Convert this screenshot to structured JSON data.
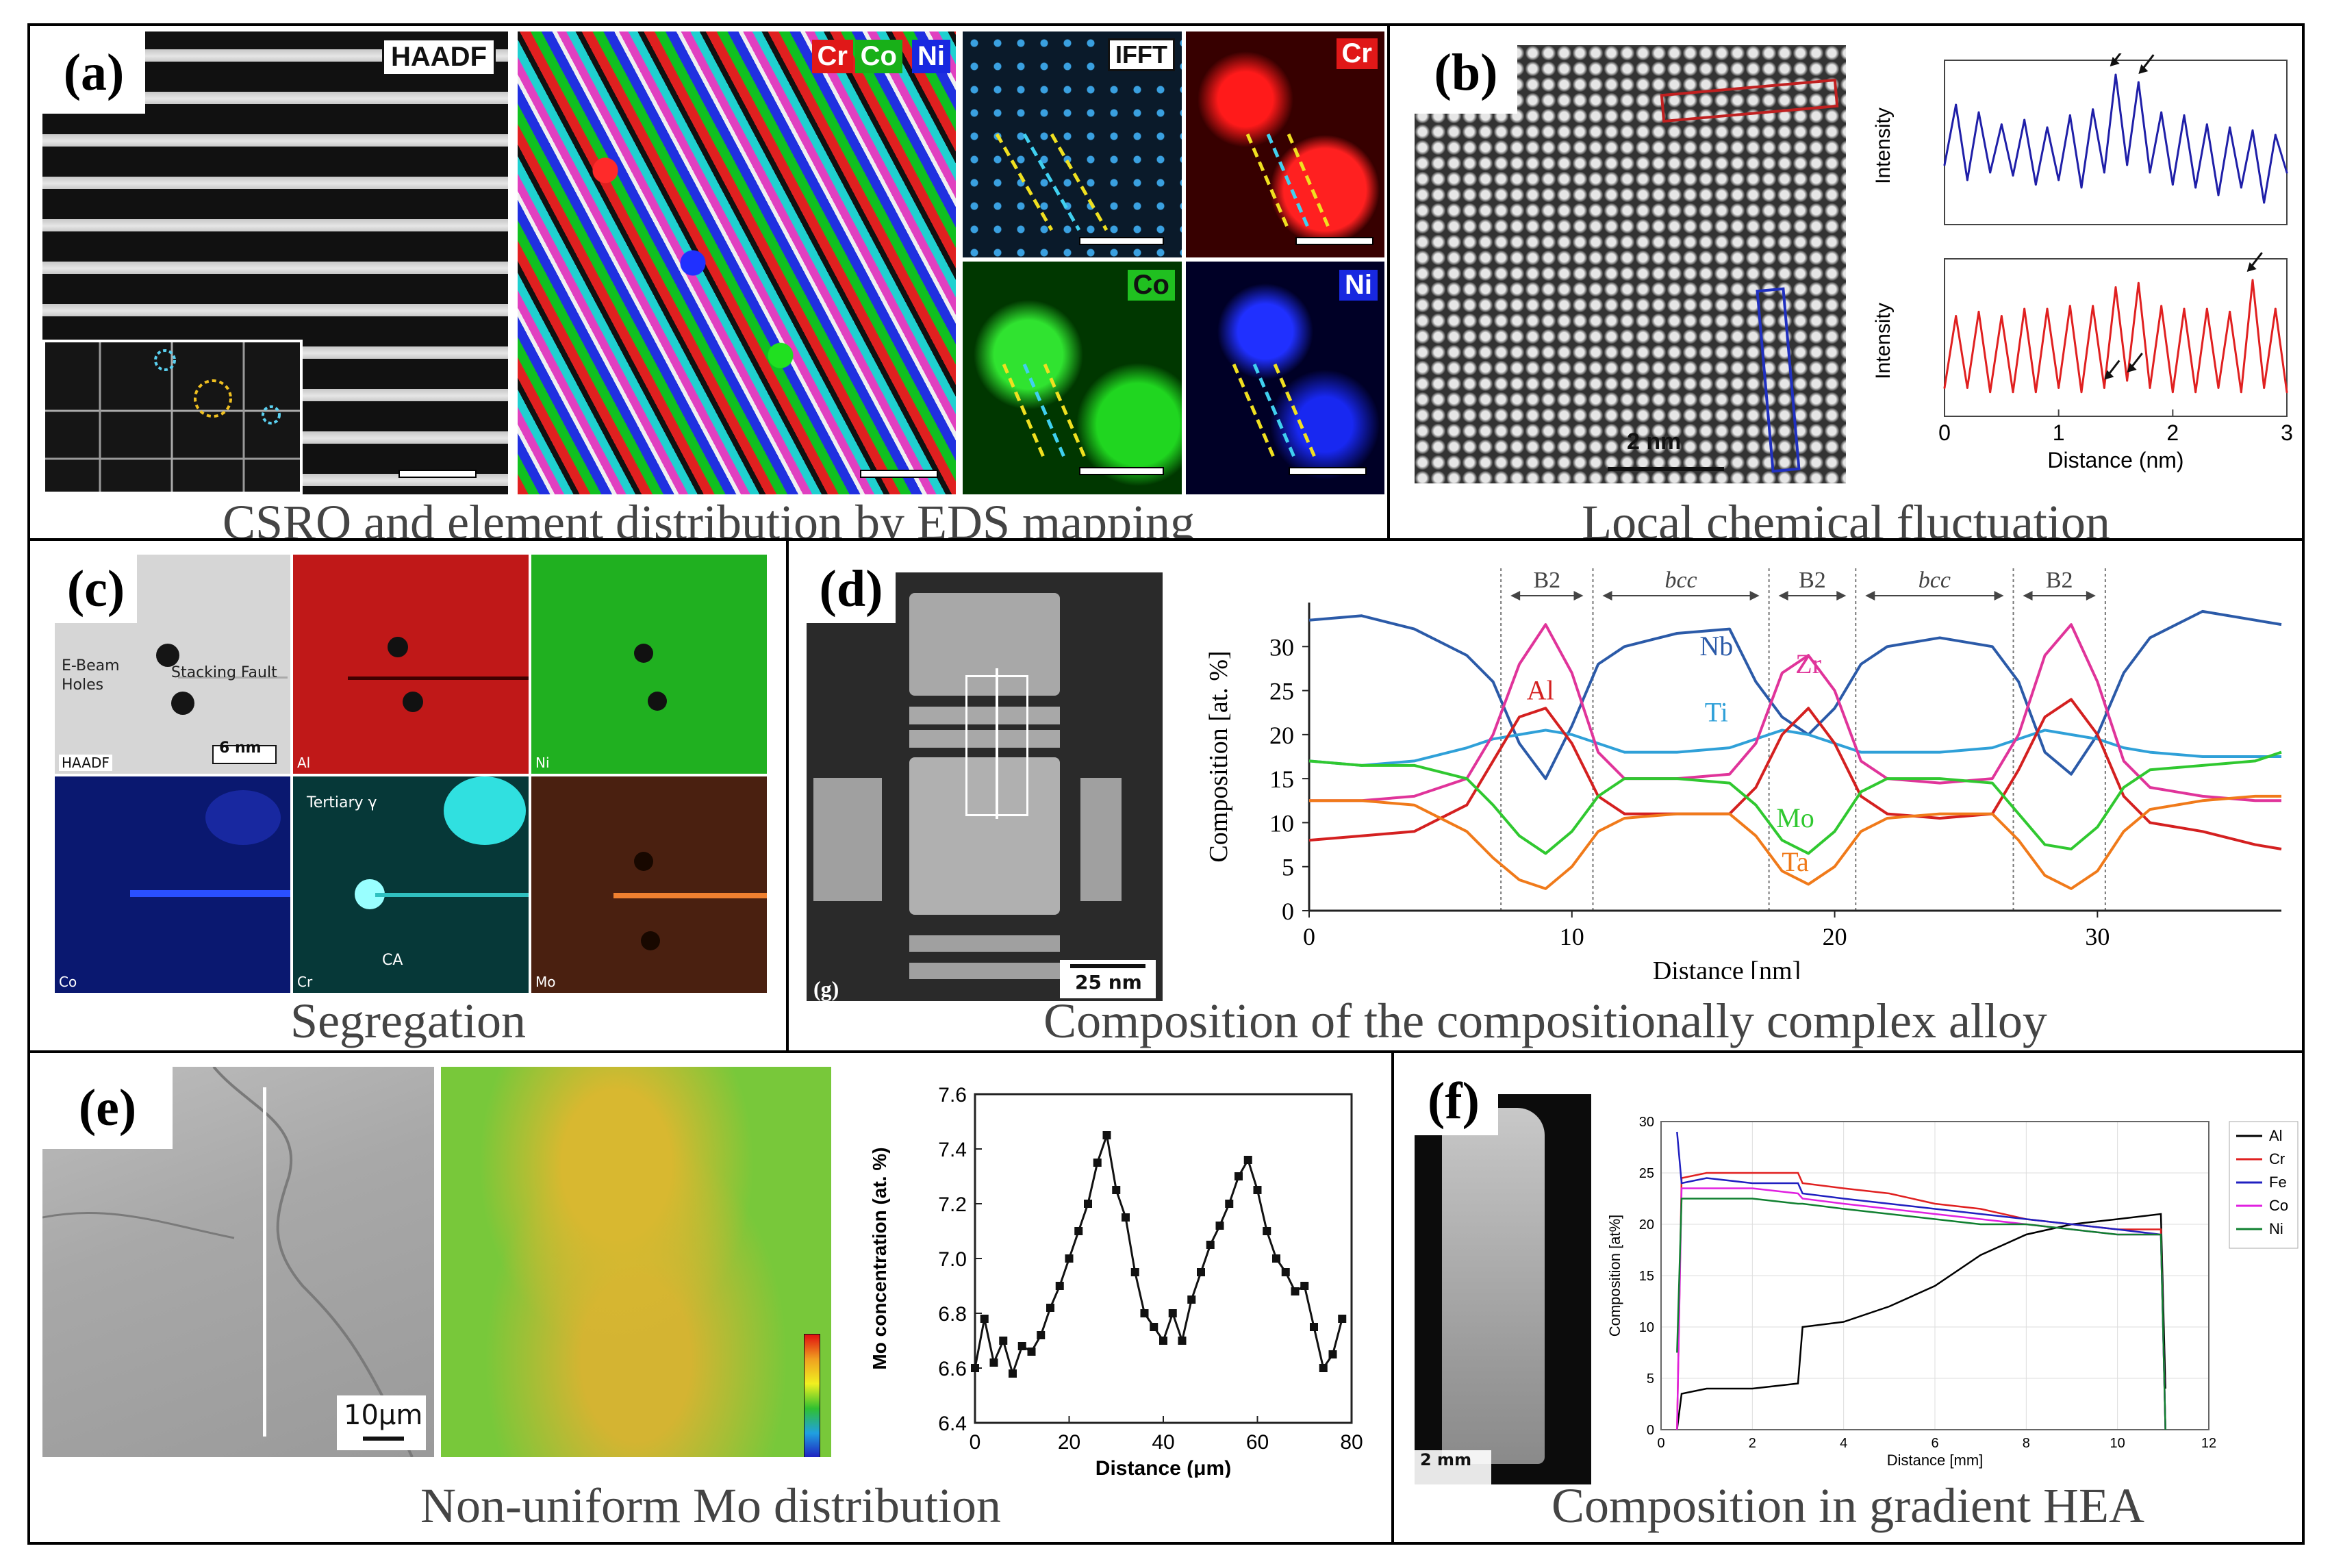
{
  "panel_a": {
    "letter": "(a)",
    "caption": "CSRO and element distribution by EDS mapping",
    "haadf_label": "HAADF",
    "map_labels": [
      "Cr",
      "Co",
      "Ni"
    ],
    "ifft_label": "IFFT",
    "cr_label": "Cr",
    "co_label": "Co",
    "ni_label": "Ni"
  },
  "panel_b": {
    "letter": "(b)",
    "caption": "Local chemical fluctuation",
    "scale_label": "2 nm",
    "ylabel": "Intensity",
    "xlabel": "Distance (nm)",
    "xticks": [
      "0",
      "1",
      "2",
      "3"
    ]
  },
  "panel_c": {
    "letter": "(c)",
    "caption": "Segregation",
    "ebeam_label": "E-Beam Holes",
    "ebeam_line1": "E-Beam",
    "ebeam_line2": "Holes",
    "stacking_label": "Stacking Fault",
    "scale_label": "6 nm",
    "tile_labels": [
      "HAADF",
      "Al",
      "Ni",
      "Co",
      "Cr",
      "Mo"
    ],
    "tertiary_label": "Tertiary γ",
    "ca_label": "CA"
  },
  "panel_d": {
    "letter": "(d)",
    "caption": "Composition of the compositionally complex alloy",
    "image_label": "(g)",
    "scale_label": "25 nm",
    "phase_labels": [
      "B2",
      "bcc",
      "B2",
      "bcc",
      "B2"
    ]
  },
  "panel_e": {
    "letter": "(e)",
    "caption": "Non-uniform Mo distribution",
    "scale_label": "10μm"
  },
  "panel_f": {
    "letter": "(f)",
    "caption": "Composition in gradient HEA",
    "scale_label": "2 mm"
  },
  "chart_data": [
    {
      "id": "b-top",
      "type": "line",
      "title": "",
      "xlabel": "Distance (nm)",
      "ylabel": "Intensity",
      "xlim": [
        0,
        3
      ],
      "color": "#1f1fa8",
      "x": [
        0,
        0.1,
        0.2,
        0.3,
        0.4,
        0.5,
        0.6,
        0.7,
        0.8,
        0.9,
        1.0,
        1.1,
        1.2,
        1.3,
        1.4,
        1.5,
        1.6,
        1.7,
        1.8,
        1.9,
        2.0,
        2.1,
        2.2,
        2.3,
        2.4,
        2.5,
        2.6,
        2.7,
        2.8,
        2.9,
        3.0
      ],
      "values": [
        0.35,
        0.75,
        0.25,
        0.7,
        0.3,
        0.62,
        0.28,
        0.65,
        0.22,
        0.6,
        0.25,
        0.68,
        0.2,
        0.72,
        0.3,
        0.95,
        0.35,
        0.9,
        0.3,
        0.7,
        0.22,
        0.68,
        0.2,
        0.62,
        0.15,
        0.6,
        0.2,
        0.58,
        0.1,
        0.55,
        0.3
      ],
      "arrows_at": [
        1.45,
        1.7
      ]
    },
    {
      "id": "b-bottom",
      "type": "line",
      "title": "",
      "xlabel": "Distance (nm)",
      "ylabel": "Intensity",
      "xlim": [
        0,
        3
      ],
      "xticks": [
        0,
        1,
        2,
        3
      ],
      "color": "#e02020",
      "x": [
        0,
        0.1,
        0.2,
        0.3,
        0.4,
        0.5,
        0.6,
        0.7,
        0.8,
        0.9,
        1.0,
        1.1,
        1.2,
        1.3,
        1.4,
        1.5,
        1.6,
        1.7,
        1.8,
        1.9,
        2.0,
        2.1,
        2.2,
        2.3,
        2.4,
        2.5,
        2.6,
        2.7,
        2.8,
        2.9,
        3.0
      ],
      "values": [
        0.15,
        0.65,
        0.15,
        0.68,
        0.12,
        0.65,
        0.12,
        0.7,
        0.12,
        0.7,
        0.15,
        0.72,
        0.12,
        0.72,
        0.15,
        0.85,
        0.2,
        0.88,
        0.15,
        0.72,
        0.12,
        0.7,
        0.12,
        0.7,
        0.15,
        0.68,
        0.12,
        0.9,
        0.15,
        0.7,
        0.12
      ],
      "arrows_at": [
        1.4,
        1.6,
        2.65
      ]
    },
    {
      "id": "d",
      "type": "line",
      "title": "",
      "xlabel": "Distance [nm]",
      "ylabel": "Composition [at. %]",
      "xlim": [
        0,
        37
      ],
      "ylim": [
        0,
        35
      ],
      "xticks": [
        0,
        10,
        20,
        30
      ],
      "yticks": [
        0,
        5,
        10,
        15,
        20,
        25,
        30
      ],
      "phase_boundaries": [
        7.3,
        10.8,
        17.5,
        20.8,
        26.8,
        30.3
      ],
      "x": [
        0,
        2,
        4,
        6,
        7,
        8,
        9,
        10,
        11,
        12,
        14,
        16,
        17,
        18,
        19,
        20,
        21,
        22,
        24,
        26,
        27,
        28,
        29,
        30,
        31,
        32,
        34,
        36,
        37
      ],
      "series": [
        {
          "name": "Nb",
          "color": "#2b5aa8",
          "values": [
            33,
            33.5,
            32,
            29,
            26,
            19,
            15,
            21,
            28,
            30,
            31.5,
            32,
            26,
            22,
            20,
            23,
            28,
            30,
            31,
            30,
            26,
            18,
            15.5,
            20,
            27,
            31,
            34,
            33,
            32.5
          ]
        },
        {
          "name": "Ti",
          "color": "#2fa0d8",
          "values": [
            17,
            16.5,
            17,
            18.5,
            19.5,
            20,
            20.5,
            20,
            19,
            18,
            18,
            18.5,
            19.5,
            20.5,
            20,
            19,
            18,
            18,
            18,
            18.5,
            19.5,
            20.5,
            20,
            19.5,
            18.5,
            18,
            17.5,
            17.5,
            17.5
          ]
        },
        {
          "name": "Zr",
          "color": "#e0349a",
          "values": [
            12.5,
            12.5,
            13,
            15,
            20,
            28,
            32.5,
            27,
            18,
            15,
            15,
            15.5,
            19,
            27,
            29,
            25,
            17,
            15,
            14.5,
            15,
            20,
            29,
            32.5,
            26,
            17,
            14,
            13,
            12.5,
            12.5
          ]
        },
        {
          "name": "Al",
          "color": "#d42020",
          "values": [
            8,
            8.5,
            9,
            12,
            17,
            22,
            23,
            19,
            13,
            11,
            11,
            11,
            14,
            20,
            23,
            19,
            13,
            11,
            10.5,
            11,
            16,
            22,
            24,
            20,
            13,
            10,
            9,
            7.5,
            7
          ]
        },
        {
          "name": "Mo",
          "color": "#30c830",
          "values": [
            17,
            16.5,
            16.5,
            15,
            12,
            8.5,
            6.5,
            9,
            13,
            15,
            15,
            14.5,
            12,
            8,
            6.5,
            9,
            13.5,
            15,
            15,
            14.5,
            11,
            7.5,
            7,
            9.5,
            14,
            16,
            16.5,
            17,
            18
          ]
        },
        {
          "name": "Ta",
          "color": "#f07a1a",
          "values": [
            12.5,
            12.5,
            12,
            9,
            6,
            3.5,
            2.5,
            5,
            9,
            10.5,
            11,
            11,
            8.5,
            4.5,
            3,
            5,
            9,
            10.5,
            11,
            11,
            8,
            4,
            2.5,
            4.5,
            9,
            11.5,
            12.5,
            13,
            13
          ]
        }
      ]
    },
    {
      "id": "e",
      "type": "line",
      "title": "",
      "xlabel": "Distance (μm)",
      "ylabel": "Mo concentration (at. %)",
      "xlim": [
        0,
        80
      ],
      "ylim": [
        6.4,
        7.6
      ],
      "xticks": [
        0,
        20,
        40,
        60,
        80
      ],
      "yticks": [
        6.4,
        6.6,
        6.8,
        7.0,
        7.2,
        7.4,
        7.6
      ],
      "x": [
        0,
        2,
        4,
        6,
        8,
        10,
        12,
        14,
        16,
        18,
        20,
        22,
        24,
        26,
        28,
        30,
        32,
        34,
        36,
        38,
        40,
        42,
        44,
        46,
        48,
        50,
        52,
        54,
        56,
        58,
        60,
        62,
        64,
        66,
        68,
        70,
        72,
        74,
        76,
        78
      ],
      "values": [
        6.6,
        6.78,
        6.62,
        6.7,
        6.58,
        6.68,
        6.66,
        6.72,
        6.82,
        6.9,
        7.0,
        7.1,
        7.2,
        7.35,
        7.45,
        7.25,
        7.15,
        6.95,
        6.8,
        6.75,
        6.7,
        6.8,
        6.7,
        6.85,
        6.95,
        7.05,
        7.12,
        7.2,
        7.3,
        7.36,
        7.25,
        7.1,
        7.0,
        6.95,
        6.88,
        6.9,
        6.75,
        6.6,
        6.65,
        6.78
      ]
    },
    {
      "id": "f",
      "type": "line",
      "title": "",
      "xlabel": "Distance [mm]",
      "ylabel": "Composition [at%]",
      "xlim": [
        0,
        12
      ],
      "ylim": [
        0,
        30
      ],
      "xticks": [
        0,
        2,
        4,
        6,
        8,
        10,
        12
      ],
      "yticks": [
        0,
        5,
        10,
        15,
        20,
        25,
        30
      ],
      "x": [
        0.35,
        0.45,
        1,
        2,
        3,
        3.1,
        4,
        5,
        6,
        7,
        8,
        9,
        10,
        10.95,
        11.05
      ],
      "series": [
        {
          "name": "Al",
          "color": "#000000",
          "values": [
            0,
            3.5,
            4,
            4,
            4.5,
            10,
            10.5,
            12,
            14,
            17,
            19,
            20,
            20.5,
            21,
            4
          ]
        },
        {
          "name": "Cr",
          "color": "#e02020",
          "values": [
            0,
            24.5,
            25,
            25,
            25,
            24,
            23.5,
            23,
            22,
            21.5,
            20.5,
            20,
            19.5,
            19.5,
            0
          ]
        },
        {
          "name": "Fe",
          "color": "#2020c0",
          "values": [
            29,
            24,
            24.5,
            24,
            24,
            23,
            22.5,
            22,
            21.5,
            21,
            20.5,
            20,
            19.5,
            19,
            0
          ]
        },
        {
          "name": "Co",
          "color": "#e020e0",
          "values": [
            0,
            23.5,
            23.5,
            23.5,
            23,
            22.5,
            22,
            21.5,
            21,
            20.5,
            20,
            19.5,
            19,
            19,
            0
          ]
        },
        {
          "name": "Ni",
          "color": "#108030",
          "values": [
            7.5,
            22.5,
            22.5,
            22.5,
            22,
            22,
            21.5,
            21,
            20.5,
            20,
            20,
            19.5,
            19,
            19,
            0
          ]
        }
      ]
    }
  ]
}
